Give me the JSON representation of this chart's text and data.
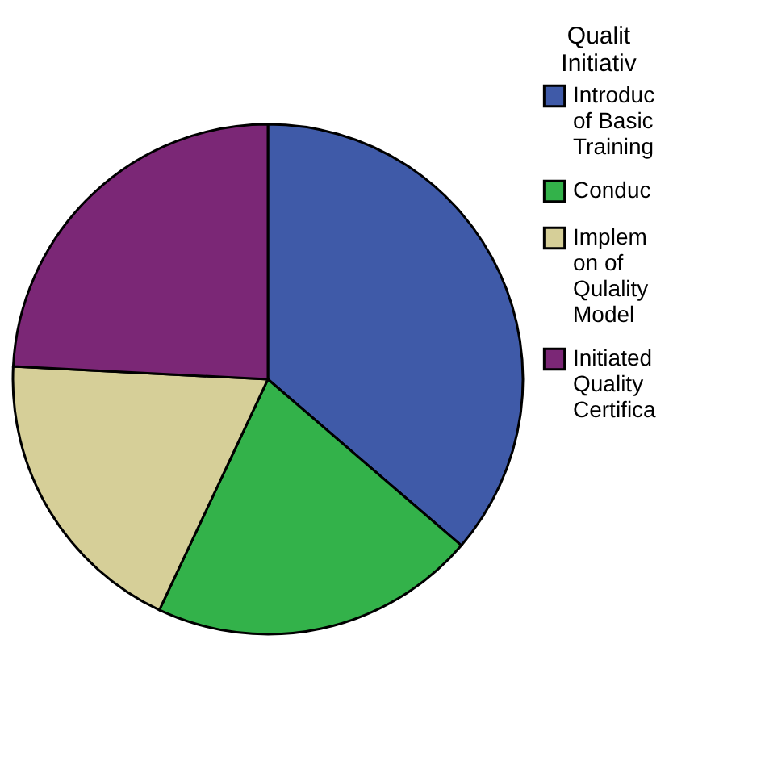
{
  "chart_data": {
    "type": "pie",
    "legend_title": "Qualit\nInitiativ",
    "legend": "right",
    "categories": [
      "Introduc\nof Basic\nTraining",
      "Conduc",
      "Implem\non of\nQulality\nModel",
      "Initiated\nQuality\nCertifica"
    ],
    "values": [
      36.3,
      20.7,
      18.8,
      24.2
    ],
    "colors": [
      "#3f5aa8",
      "#33b24a",
      "#d6cf98",
      "#7b2776"
    ]
  }
}
